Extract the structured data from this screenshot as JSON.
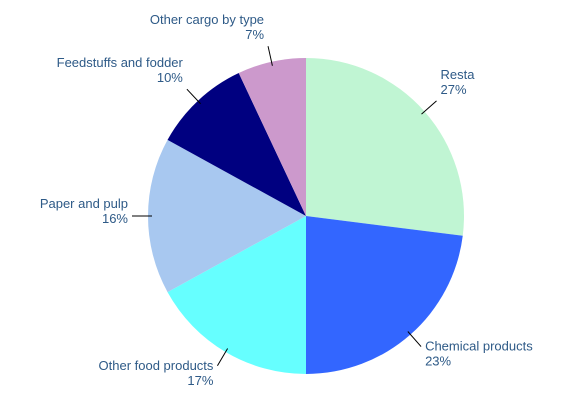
{
  "chart_data": {
    "type": "pie",
    "categories": [
      "Resta",
      "Chemical products",
      "Other food products",
      "Paper and pulp",
      "Feedstuffs and fodder",
      "Other cargo by type"
    ],
    "values": [
      27,
      23,
      17,
      16,
      10,
      7
    ],
    "value_labels": [
      "27%",
      "23%",
      "17%",
      "16%",
      "10%",
      "7%"
    ],
    "colors": [
      "#c0f5d3",
      "#3366ff",
      "#66ffff",
      "#a8c8f0",
      "#000080",
      "#cc99cc"
    ]
  }
}
